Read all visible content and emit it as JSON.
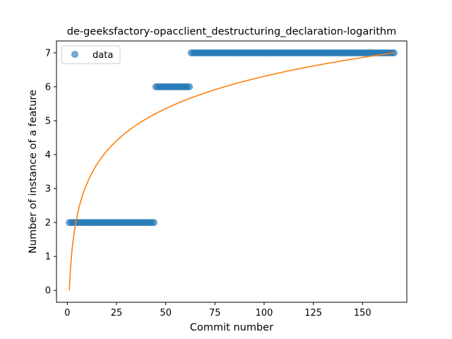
{
  "chart_data": {
    "type": "scatter",
    "title": "de-geeksfactory-opacclient_destructuring_declaration-logarithm",
    "xlabel": "Commit number",
    "ylabel": "Number of instance of a feature",
    "xlim": [
      -5.5,
      172.5
    ],
    "ylim": [
      -0.35,
      7.35
    ],
    "xticks": [
      0,
      25,
      50,
      75,
      100,
      125,
      150
    ],
    "yticks": [
      0,
      1,
      2,
      3,
      4,
      5,
      6,
      7
    ],
    "legend_position": "top-left",
    "grid": false,
    "series": [
      {
        "name": "data",
        "kind": "scatter",
        "color": "#1f77b4",
        "segments": [
          {
            "x_start": 1,
            "x_end": 44,
            "y": 2
          },
          {
            "x_start": 45,
            "x_end": 62,
            "y": 6
          },
          {
            "x_start": 63,
            "x_end": 166,
            "y": 7
          }
        ]
      },
      {
        "kind": "line",
        "color": "#ff7f0e",
        "fit": "y = a * ln(x)",
        "coefficient": 1.3696,
        "x_range": [
          1,
          166
        ]
      }
    ]
  }
}
